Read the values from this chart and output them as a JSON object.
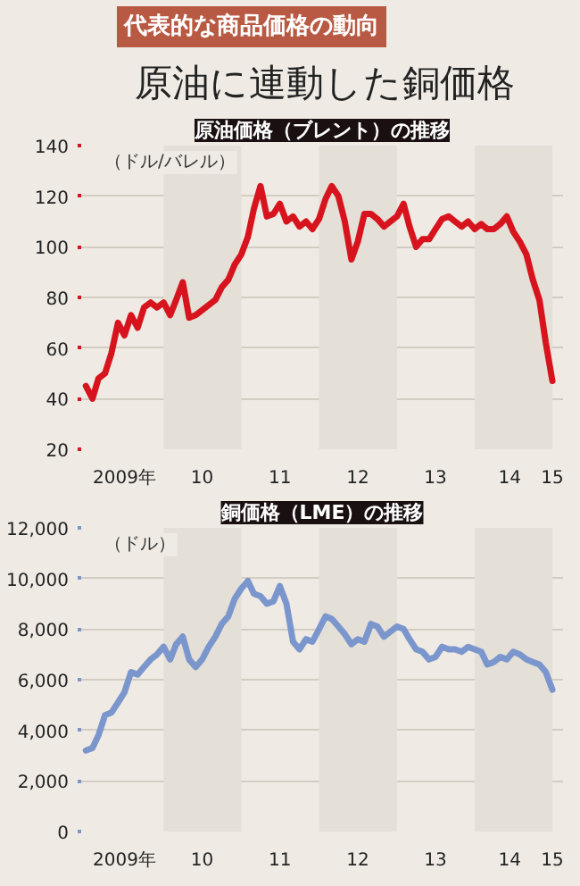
{
  "chart_data": [
    {
      "type": "other",
      "subtitle": "代表的な商品価格の動向",
      "title": "原油に連動した銅価格"
    },
    {
      "type": "line",
      "title": "原油価格（ブレント）の推移",
      "ylabel": "（ドル/バレル）",
      "x": [
        "2009-01",
        "2009-02",
        "2009-03",
        "2009-04",
        "2009-05",
        "2009-06",
        "2009-07",
        "2009-08",
        "2009-09",
        "2009-10",
        "2009-11",
        "2009-12",
        "2010-01",
        "2010-02",
        "2010-03",
        "2010-04",
        "2010-05",
        "2010-06",
        "2010-07",
        "2010-08",
        "2010-09",
        "2010-10",
        "2010-11",
        "2010-12",
        "2011-01",
        "2011-02",
        "2011-03",
        "2011-04",
        "2011-05",
        "2011-06",
        "2011-07",
        "2011-08",
        "2011-09",
        "2011-10",
        "2011-11",
        "2011-12",
        "2012-01",
        "2012-02",
        "2012-03",
        "2012-04",
        "2012-05",
        "2012-06",
        "2012-07",
        "2012-08",
        "2012-09",
        "2012-10",
        "2012-11",
        "2012-12",
        "2013-01",
        "2013-02",
        "2013-03",
        "2013-04",
        "2013-05",
        "2013-06",
        "2013-07",
        "2013-08",
        "2013-09",
        "2013-10",
        "2013-11",
        "2013-12",
        "2014-01",
        "2014-02",
        "2014-03",
        "2014-04",
        "2014-05",
        "2014-06",
        "2014-07",
        "2014-08",
        "2014-09",
        "2014-10",
        "2014-11",
        "2014-12",
        "2015-01"
      ],
      "series": [
        {
          "color": "#d7141e",
          "values": [
            45,
            40,
            48,
            50,
            58,
            70,
            65,
            73,
            68,
            76,
            78,
            76,
            78,
            73,
            79,
            86,
            72,
            73,
            75,
            77,
            79,
            84,
            87,
            93,
            97,
            104,
            115,
            124,
            112,
            113,
            117,
            110,
            112,
            108,
            110,
            107,
            111,
            119,
            124,
            120,
            110,
            95,
            102,
            113,
            113,
            111,
            108,
            110,
            112,
            117,
            108,
            100,
            103,
            103,
            107,
            111,
            112,
            110,
            108,
            110,
            107,
            109,
            107,
            107,
            109,
            112,
            106,
            102,
            97,
            87,
            79,
            62,
            47
          ]
        }
      ],
      "xlim": [
        "2008-12-10",
        "2015-02-20"
      ],
      "ylim": [
        20,
        140
      ],
      "xticks": [
        {
          "value": "2009-07-01",
          "label": "2009年"
        },
        {
          "value": "2010-07-01",
          "label": "10"
        },
        {
          "value": "2011-07-01",
          "label": "11"
        },
        {
          "value": "2012-07-01",
          "label": "12"
        },
        {
          "value": "2013-07-01",
          "label": "13"
        },
        {
          "value": "2014-06-15",
          "label": "14"
        },
        {
          "value": "2015-01-01",
          "label": "15"
        }
      ],
      "yticks": [
        20,
        40,
        60,
        80,
        100,
        120,
        140
      ],
      "grid": "y",
      "bands": [
        {
          "axis": "x",
          "from": "2010-01-01",
          "to": "2011-01-01",
          "color": "#e4dfd7"
        },
        {
          "axis": "x",
          "from": "2012-01-01",
          "to": "2013-01-01",
          "color": "#e4dfd7"
        },
        {
          "axis": "x",
          "from": "2014-01-01",
          "to": "2015-01-01",
          "color": "#e4dfd7"
        }
      ]
    },
    {
      "type": "line",
      "title": "銅価格（LME）の推移",
      "ylabel": "（ドル）",
      "x": [
        "2009-01",
        "2009-02",
        "2009-03",
        "2009-04",
        "2009-05",
        "2009-06",
        "2009-07",
        "2009-08",
        "2009-09",
        "2009-10",
        "2009-11",
        "2009-12",
        "2010-01",
        "2010-02",
        "2010-03",
        "2010-04",
        "2010-05",
        "2010-06",
        "2010-07",
        "2010-08",
        "2010-09",
        "2010-10",
        "2010-11",
        "2010-12",
        "2011-01",
        "2011-02",
        "2011-03",
        "2011-04",
        "2011-05",
        "2011-06",
        "2011-07",
        "2011-08",
        "2011-09",
        "2011-10",
        "2011-11",
        "2011-12",
        "2012-01",
        "2012-02",
        "2012-03",
        "2012-04",
        "2012-05",
        "2012-06",
        "2012-07",
        "2012-08",
        "2012-09",
        "2012-10",
        "2012-11",
        "2012-12",
        "2013-01",
        "2013-02",
        "2013-03",
        "2013-04",
        "2013-05",
        "2013-06",
        "2013-07",
        "2013-08",
        "2013-09",
        "2013-10",
        "2013-11",
        "2013-12",
        "2014-01",
        "2014-02",
        "2014-03",
        "2014-04",
        "2014-05",
        "2014-06",
        "2014-07",
        "2014-08",
        "2014-09",
        "2014-10",
        "2014-11",
        "2014-12",
        "2015-01"
      ],
      "series": [
        {
          "color": "#7b96cc",
          "values": [
            3200,
            3300,
            3800,
            4600,
            4700,
            5100,
            5500,
            6300,
            6200,
            6500,
            6800,
            7000,
            7300,
            6800,
            7400,
            7700,
            6800,
            6500,
            6800,
            7300,
            7700,
            8200,
            8500,
            9200,
            9600,
            9900,
            9400,
            9300,
            9000,
            9100,
            9700,
            9000,
            7500,
            7200,
            7600,
            7500,
            8000,
            8500,
            8400,
            8100,
            7800,
            7400,
            7600,
            7500,
            8200,
            8100,
            7700,
            7900,
            8100,
            8000,
            7600,
            7200,
            7100,
            6800,
            6900,
            7300,
            7200,
            7200,
            7100,
            7300,
            7200,
            7100,
            6600,
            6700,
            6900,
            6800,
            7100,
            7000,
            6800,
            6700,
            6600,
            6300,
            5600
          ]
        }
      ],
      "xlim": [
        "2008-12-10",
        "2015-02-20"
      ],
      "ylim": [
        0,
        12000
      ],
      "xticks": [
        {
          "value": "2009-07-01",
          "label": "2009年"
        },
        {
          "value": "2010-07-01",
          "label": "10"
        },
        {
          "value": "2011-07-01",
          "label": "11"
        },
        {
          "value": "2012-07-01",
          "label": "12"
        },
        {
          "value": "2013-07-01",
          "label": "13"
        },
        {
          "value": "2014-06-15",
          "label": "14"
        },
        {
          "value": "2015-01-01",
          "label": "15"
        }
      ],
      "yticks": [
        {
          "value": 0,
          "label": "0"
        },
        {
          "value": 2000,
          "label": "2,000"
        },
        {
          "value": 4000,
          "label": "4,000"
        },
        {
          "value": 6000,
          "label": "6,000"
        },
        {
          "value": 8000,
          "label": "8,000"
        },
        {
          "value": 10000,
          "label": "10,000"
        },
        {
          "value": 12000,
          "label": "12,000"
        }
      ],
      "grid": "y",
      "bands": [
        {
          "axis": "x",
          "from": "2010-01-01",
          "to": "2011-01-01",
          "color": "#e4dfd7"
        },
        {
          "axis": "x",
          "from": "2012-01-01",
          "to": "2013-01-01",
          "color": "#e4dfd7"
        },
        {
          "axis": "x",
          "from": "2014-01-01",
          "to": "2015-01-01",
          "color": "#e4dfd7"
        }
      ]
    }
  ]
}
